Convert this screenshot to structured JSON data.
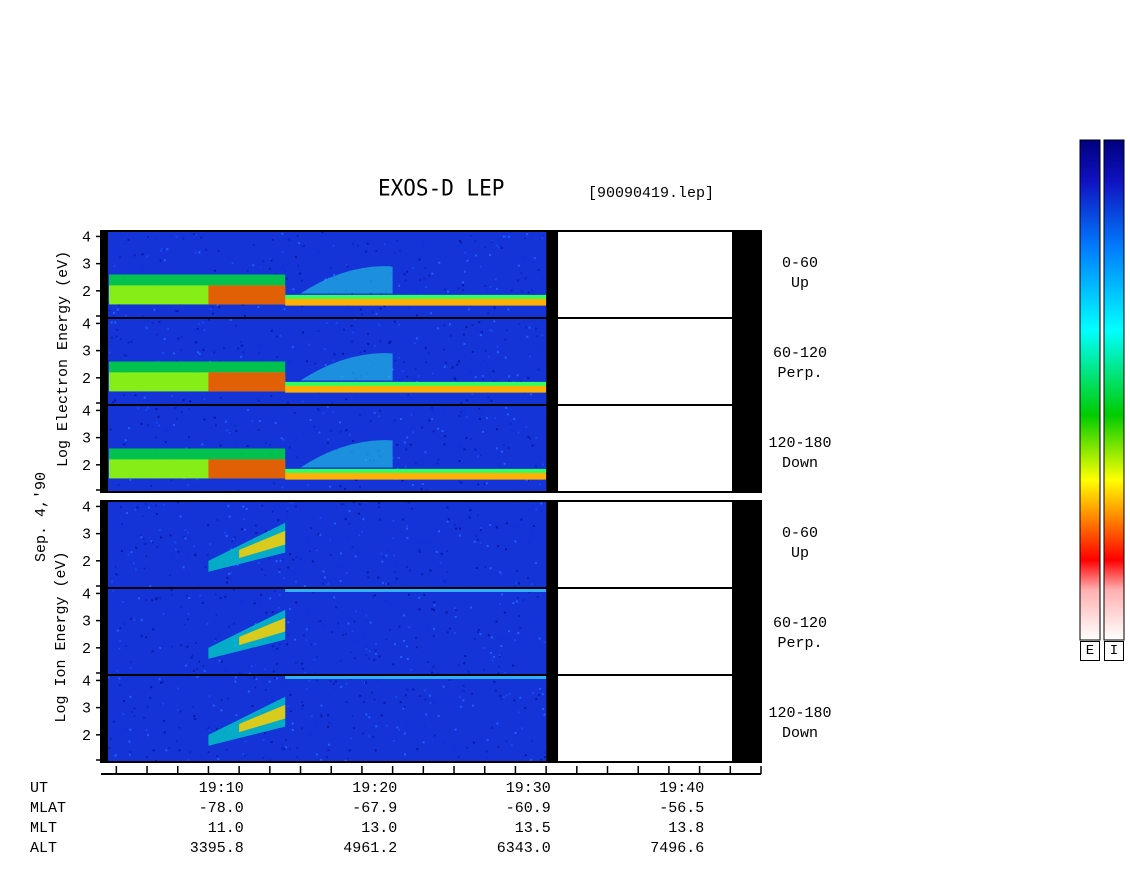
{
  "header": {
    "title": "EXOS-D LEP",
    "file": "[90090419.lep]"
  },
  "date_label": "Sep. 4,'90",
  "electron_group": {
    "ylabel": [
      "Log",
      "Electron",
      "Energy",
      "(eV)"
    ]
  },
  "ion_group": {
    "ylabel": [
      "Log",
      "Ion",
      "Energy",
      "(eV)"
    ]
  },
  "channels": [
    {
      "range": "0-60",
      "dir": "Up"
    },
    {
      "range": "60-120",
      "dir": "Perp."
    },
    {
      "range": "120-180",
      "dir": "Down"
    }
  ],
  "colorbar": {
    "labels": [
      "E",
      "I"
    ]
  },
  "chart_data": {
    "type": "heatmap",
    "title": "EXOS-D LEP",
    "file": "[90090419.lep]",
    "date": "Sep. 4,'90",
    "x_axis": {
      "label": "UT",
      "ticks": [
        "19:10",
        "19:20",
        "19:30",
        "19:40"
      ],
      "range_minutes_ut": [
        "19:02",
        "19:45"
      ]
    },
    "y_axis": {
      "label": "Log Energy (eV)",
      "ticks": [
        "2",
        "3",
        "4"
      ],
      "range": [
        1,
        4.2
      ]
    },
    "data_coverage": {
      "start": "19:02",
      "end": "19:31"
    },
    "panels": [
      {
        "species": "Electron",
        "range": "0-60",
        "dir": "Up"
      },
      {
        "species": "Electron",
        "range": "60-120",
        "dir": "Perp."
      },
      {
        "species": "Electron",
        "range": "120-180",
        "dir": "Down"
      },
      {
        "species": "Ion",
        "range": "0-60",
        "dir": "Up"
      },
      {
        "species": "Ion",
        "range": "60-120",
        "dir": "Perp."
      },
      {
        "species": "Ion",
        "range": "120-180",
        "dir": "Down"
      }
    ],
    "orbit_table": {
      "rows": [
        {
          "name": "UT",
          "values": [
            "19:10",
            "19:20",
            "19:30",
            "19:40"
          ]
        },
        {
          "name": "MLAT",
          "values": [
            "-78.0",
            "-67.9",
            "-60.9",
            "-56.5"
          ]
        },
        {
          "name": "MLT",
          "values": [
            "11.0",
            "13.0",
            "13.5",
            "13.8"
          ]
        },
        {
          "name": "ALT",
          "values": [
            "3395.8",
            "4961.2",
            "6343.0",
            "7496.6"
          ]
        }
      ]
    },
    "colorscale": [
      "#ffffff",
      "#ff0000",
      "#ff8000",
      "#ffff00",
      "#00cc00",
      "#00ffff",
      "#0080ff",
      "#0000a0"
    ]
  }
}
